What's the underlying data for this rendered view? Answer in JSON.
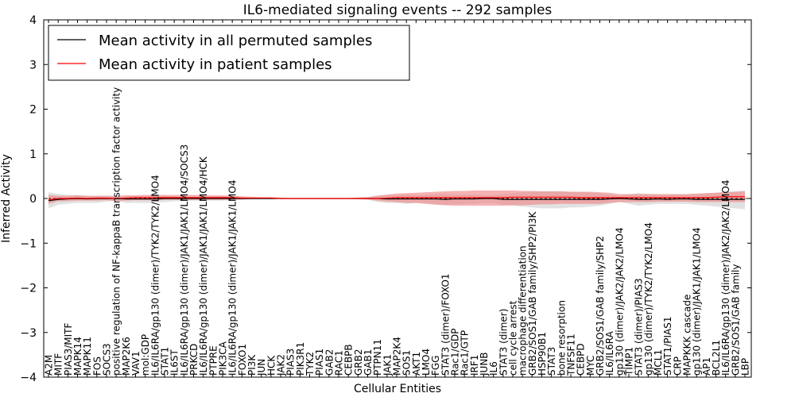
{
  "chart_data": {
    "type": "line",
    "title": "IL6-mediated signaling events -- 292 samples",
    "xlabel": "Cellular Entities",
    "ylabel": "Inferred Activity",
    "ylim": [
      -4,
      4
    ],
    "yticks": [
      -4,
      -3,
      -2,
      -1,
      0,
      1,
      2,
      3,
      4
    ],
    "ytick_labels": [
      "−4",
      "−3",
      "−2",
      "−1",
      "0",
      "1",
      "2",
      "3",
      "4"
    ],
    "legend_position": "top-left",
    "categories": [
      "A2M",
      "MITF",
      "PIAS3/MITF",
      "MAPK14",
      "MAPK11",
      "FOS",
      "SOCS3",
      "positive regulation of NF-kappaB transcription factor activity",
      "MAP2K6",
      "VAV1",
      "mol:GDP",
      "IL6/IL6RA/gp130 (dimer)/TYK2/TYK2/LMO4",
      "STAT1",
      "IL6ST",
      "IL6/IL6RA/gp130 (dimer)/JAK1/JAK1/LMO4/SOCS3",
      "PRKCD",
      "IL6/IL6RA/gp130 (dimer)/JAK1/JAK1/LMO4/HCK",
      "PTPRE",
      "PIK3CA",
      "IL6/IL6RA/gp130 (dimer)/JAK1/JAK1/LMO4",
      "FOXO1",
      "PI3K",
      "JUN",
      "HCK",
      "JAK2",
      "PIAS3",
      "PIK3R1",
      "TYK2",
      "PIAS1",
      "GAB2",
      "RAC1",
      "CEBPB",
      "GRB2",
      "GAB1",
      "PTPN11",
      "JAK1",
      "MAP2K4",
      "SOS1",
      "AKT1",
      "LMO4",
      "FGG",
      "STAT3 (dimer)/FOXO1",
      "Rac1/GDP",
      "Rac1/GTP",
      "IRF1",
      "JUNB",
      "IL6",
      "STAT3 (dimer)",
      "cell cycle arrest",
      "macrophage differentiation",
      "GRB2/SOS1/GAB family/SHP2/PI3K",
      "HSP90B1",
      "STAT3",
      "bone resorption",
      "TNFSF11",
      "CEBPD",
      "MYC",
      "GRB2/SOS1/GAB family/SHP2",
      "IL6/IL6RA",
      "gp130 (dimer)/JAK2/JAK2/LMO4",
      "TIMP1",
      "STAT3 (dimer)/PIAS3",
      "gp130 (dimer)/TYK2/TYK2/LMO4",
      "MCL1",
      "STAT1/PIAS1",
      "CRP",
      "MAPKKK cascade",
      "gp130 (dimer)/JAK1/JAK1/LMO4",
      "AP1",
      "BCL2L1",
      "IL6/IL6RA/gp130 (dimer)/JAK2/JAK2/LMO4",
      "GRB2/SOS1/GAB family",
      "LBP"
    ],
    "series": [
      {
        "name": "Mean activity in all permuted samples",
        "color": "#000000",
        "band_color": "#c8c8c8",
        "values": [
          -0.05,
          -0.02,
          -0.01,
          0.0,
          -0.01,
          0.0,
          0.0,
          0.0,
          -0.01,
          -0.01,
          -0.01,
          -0.01,
          0.0,
          0.0,
          0.0,
          0.0,
          0.0,
          0.0,
          0.0,
          0.0,
          0.0,
          0.0,
          0.0,
          0.0,
          0.0,
          0.0,
          0.0,
          0.0,
          0.0,
          0.0,
          0.0,
          0.0,
          0.0,
          0.0,
          0.0,
          -0.01,
          -0.01,
          -0.01,
          -0.01,
          -0.01,
          -0.01,
          -0.02,
          -0.01,
          -0.01,
          -0.01,
          0.0,
          0.0,
          -0.02,
          -0.02,
          -0.02,
          -0.02,
          -0.02,
          -0.02,
          -0.02,
          -0.02,
          -0.02,
          -0.02,
          -0.02,
          -0.01,
          0.0,
          -0.01,
          -0.02,
          -0.02,
          -0.01,
          -0.02,
          -0.01,
          -0.01,
          -0.02,
          -0.02,
          -0.02,
          -0.02,
          -0.02,
          -0.02
        ],
        "band_lower": [
          -0.22,
          -0.14,
          -0.12,
          -0.1,
          -0.1,
          -0.1,
          -0.07,
          -0.05,
          -0.1,
          -0.1,
          -0.1,
          -0.09,
          -0.08,
          -0.06,
          -0.06,
          -0.05,
          -0.05,
          -0.05,
          -0.05,
          -0.04,
          -0.03,
          -0.02,
          -0.02,
          -0.02,
          -0.01,
          -0.01,
          -0.01,
          -0.01,
          -0.01,
          -0.01,
          -0.01,
          -0.01,
          -0.02,
          -0.03,
          -0.08,
          -0.1,
          -0.1,
          -0.12,
          -0.1,
          -0.1,
          -0.12,
          -0.14,
          -0.13,
          -0.12,
          -0.12,
          -0.1,
          -0.1,
          -0.14,
          -0.16,
          -0.18,
          -0.2,
          -0.22,
          -0.22,
          -0.22,
          -0.2,
          -0.2,
          -0.18,
          -0.16,
          -0.12,
          -0.08,
          -0.12,
          -0.16,
          -0.14,
          -0.12,
          -0.12,
          -0.12,
          -0.12,
          -0.14,
          -0.16,
          -0.18,
          -0.2,
          -0.22,
          -0.24
        ],
        "band_upper": [
          0.14,
          0.1,
          0.08,
          0.08,
          0.06,
          0.06,
          0.06,
          0.05,
          0.06,
          0.06,
          0.06,
          0.07,
          0.06,
          0.05,
          0.05,
          0.05,
          0.05,
          0.05,
          0.05,
          0.04,
          0.03,
          0.02,
          0.02,
          0.02,
          0.01,
          0.01,
          0.01,
          0.01,
          0.01,
          0.01,
          0.01,
          0.01,
          0.02,
          0.03,
          0.07,
          0.08,
          0.08,
          0.09,
          0.08,
          0.08,
          0.1,
          0.1,
          0.09,
          0.09,
          0.09,
          0.08,
          0.08,
          0.1,
          0.12,
          0.14,
          0.15,
          0.16,
          0.16,
          0.16,
          0.15,
          0.15,
          0.13,
          0.12,
          0.09,
          0.06,
          0.09,
          0.12,
          0.1,
          0.09,
          0.09,
          0.09,
          0.09,
          0.1,
          0.12,
          0.13,
          0.15,
          0.16,
          0.18
        ]
      },
      {
        "name": "Mean activity in patient samples",
        "color": "#ff0000",
        "band_color": "#f08080",
        "values": [
          -0.03,
          0.0,
          0.0,
          0.01,
          0.0,
          0.01,
          0.01,
          0.0,
          0.01,
          0.02,
          0.02,
          0.02,
          0.02,
          0.02,
          0.02,
          0.02,
          0.02,
          0.02,
          0.02,
          0.02,
          0.01,
          0.01,
          0.01,
          0.01,
          0.0,
          0.0,
          0.0,
          0.0,
          0.0,
          0.0,
          0.0,
          0.0,
          0.0,
          0.0,
          0.0,
          0.01,
          0.02,
          0.02,
          0.02,
          0.02,
          0.02,
          0.02,
          0.02,
          0.02,
          0.02,
          0.02,
          0.02,
          0.02,
          0.03,
          0.03,
          0.03,
          0.03,
          0.03,
          0.03,
          0.03,
          0.02,
          0.02,
          0.02,
          0.02,
          0.02,
          0.02,
          0.02,
          0.02,
          0.02,
          0.02,
          0.02,
          0.02,
          0.02,
          0.02,
          0.03,
          0.04,
          0.04,
          0.04
        ],
        "band_lower": [
          -0.12,
          -0.06,
          -0.06,
          -0.05,
          -0.05,
          -0.05,
          -0.04,
          -0.06,
          -0.05,
          -0.04,
          -0.04,
          -0.04,
          -0.03,
          -0.03,
          -0.03,
          -0.03,
          -0.03,
          -0.03,
          -0.03,
          -0.02,
          -0.02,
          -0.01,
          -0.01,
          -0.01,
          -0.01,
          -0.01,
          -0.01,
          -0.01,
          -0.01,
          -0.01,
          -0.01,
          -0.01,
          -0.01,
          -0.02,
          -0.05,
          -0.07,
          -0.08,
          -0.1,
          -0.1,
          -0.12,
          -0.14,
          -0.15,
          -0.16,
          -0.16,
          -0.16,
          -0.16,
          -0.16,
          -0.16,
          -0.15,
          -0.15,
          -0.14,
          -0.13,
          -0.13,
          -0.12,
          -0.12,
          -0.12,
          -0.12,
          -0.12,
          -0.1,
          -0.08,
          -0.08,
          -0.08,
          -0.08,
          -0.07,
          -0.07,
          -0.07,
          -0.07,
          -0.08,
          -0.08,
          -0.08,
          -0.08,
          -0.08,
          -0.08
        ],
        "band_upper": [
          0.08,
          0.06,
          0.06,
          0.07,
          0.06,
          0.06,
          0.06,
          0.06,
          0.07,
          0.07,
          0.08,
          0.08,
          0.08,
          0.08,
          0.08,
          0.08,
          0.08,
          0.07,
          0.07,
          0.06,
          0.05,
          0.04,
          0.03,
          0.03,
          0.02,
          0.01,
          0.01,
          0.01,
          0.01,
          0.01,
          0.01,
          0.01,
          0.02,
          0.03,
          0.06,
          0.09,
          0.11,
          0.12,
          0.13,
          0.14,
          0.15,
          0.16,
          0.17,
          0.17,
          0.18,
          0.18,
          0.18,
          0.18,
          0.18,
          0.17,
          0.17,
          0.16,
          0.16,
          0.16,
          0.15,
          0.15,
          0.15,
          0.14,
          0.13,
          0.1,
          0.1,
          0.1,
          0.1,
          0.1,
          0.1,
          0.1,
          0.1,
          0.11,
          0.12,
          0.13,
          0.14,
          0.15,
          0.16
        ]
      }
    ]
  }
}
